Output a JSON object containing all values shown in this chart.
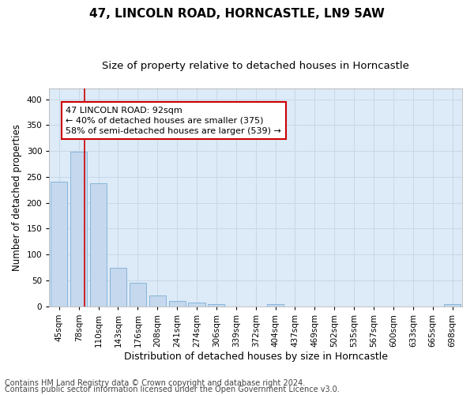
{
  "title1": "47, LINCOLN ROAD, HORNCASTLE, LN9 5AW",
  "title2": "Size of property relative to detached houses in Horncastle",
  "xlabel": "Distribution of detached houses by size in Horncastle",
  "ylabel": "Number of detached properties",
  "footer1": "Contains HM Land Registry data © Crown copyright and database right 2024.",
  "footer2": "Contains public sector information licensed under the Open Government Licence v3.0.",
  "bin_labels": [
    "45sqm",
    "78sqm",
    "110sqm",
    "143sqm",
    "176sqm",
    "208sqm",
    "241sqm",
    "274sqm",
    "306sqm",
    "339sqm",
    "372sqm",
    "404sqm",
    "437sqm",
    "469sqm",
    "502sqm",
    "535sqm",
    "567sqm",
    "600sqm",
    "633sqm",
    "665sqm",
    "698sqm"
  ],
  "bar_values": [
    240,
    298,
    238,
    75,
    46,
    21,
    10,
    8,
    5,
    0,
    0,
    4,
    0,
    0,
    0,
    0,
    0,
    0,
    0,
    0,
    4
  ],
  "bar_color": "#c5d8ee",
  "bar_edge_color": "#7bafd4",
  "vline_x": 1.3,
  "vline_color": "#cc0000",
  "annotation_text": "47 LINCOLN ROAD: 92sqm\n← 40% of detached houses are smaller (375)\n58% of semi-detached houses are larger (539) →",
  "annotation_box_color": "#ffffff",
  "annotation_box_edge": "#cc0000",
  "ylim": [
    0,
    420
  ],
  "yticks": [
    0,
    50,
    100,
    150,
    200,
    250,
    300,
    350,
    400
  ],
  "plot_bg_color": "#ddeaf7",
  "grid_color": "#c8d8e8",
  "title1_fontsize": 11,
  "title2_fontsize": 9.5,
  "xlabel_fontsize": 9,
  "ylabel_fontsize": 8.5,
  "tick_fontsize": 7.5,
  "annotation_fontsize": 8,
  "footer_fontsize": 7
}
